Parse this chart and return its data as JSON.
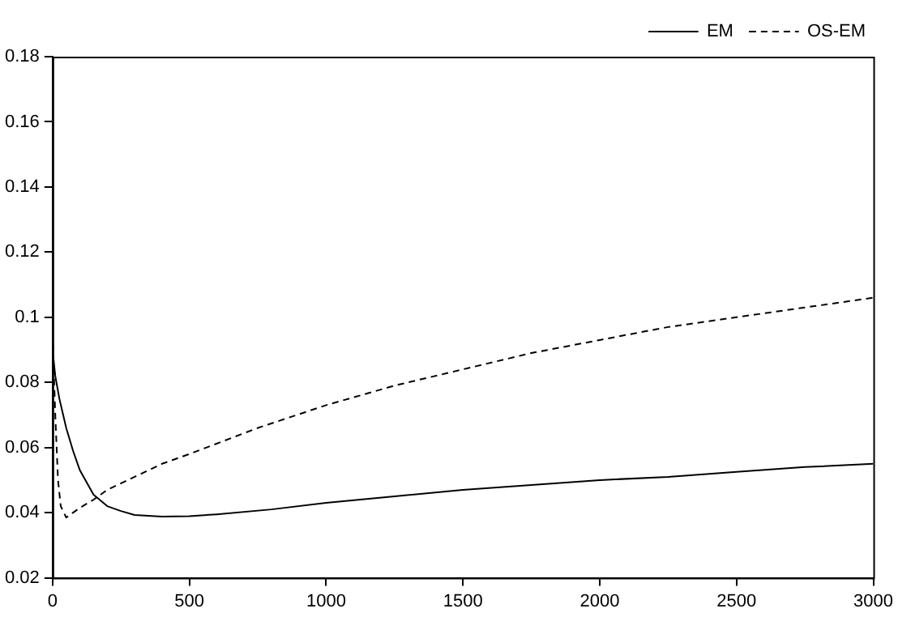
{
  "chart_data": {
    "type": "line",
    "xlim": [
      0,
      3000
    ],
    "xticks": [
      0,
      500,
      1000,
      1500,
      2000,
      2500,
      3000
    ],
    "ylim": [
      0.02,
      0.18
    ],
    "yticks": [
      0.02,
      0.04,
      0.06,
      0.08,
      0.1,
      0.12,
      0.14,
      0.16,
      0.18
    ],
    "grid": false,
    "legend": "top right",
    "marker": "none",
    "series": [
      {
        "name": "EM",
        "color": "#000000",
        "line_style": "solid",
        "x": [
          0,
          10,
          25,
          50,
          75,
          100,
          150,
          200,
          250,
          300,
          400,
          500,
          600,
          800,
          1000,
          1250,
          1500,
          1750,
          2000,
          2250,
          2500,
          2750,
          3000
        ],
        "values": [
          0.09,
          0.082,
          0.075,
          0.066,
          0.059,
          0.053,
          0.0455,
          0.042,
          0.0405,
          0.0393,
          0.0388,
          0.0389,
          0.0395,
          0.041,
          0.043,
          0.045,
          0.047,
          0.0485,
          0.05,
          0.051,
          0.0525,
          0.054,
          0.055
        ]
      },
      {
        "name": "OS-EM",
        "color": "#000000",
        "line_style": "dashed",
        "x": [
          0,
          10,
          20,
          30,
          50,
          75,
          100,
          150,
          200,
          300,
          400,
          500,
          750,
          1000,
          1250,
          1500,
          1750,
          2000,
          2250,
          2500,
          2750,
          3000
        ],
        "values": [
          0.095,
          0.07,
          0.05,
          0.042,
          0.0385,
          0.04,
          0.0415,
          0.044,
          0.047,
          0.051,
          0.055,
          0.058,
          0.066,
          0.073,
          0.079,
          0.084,
          0.089,
          0.093,
          0.097,
          0.1,
          0.103,
          0.106
        ]
      }
    ]
  }
}
